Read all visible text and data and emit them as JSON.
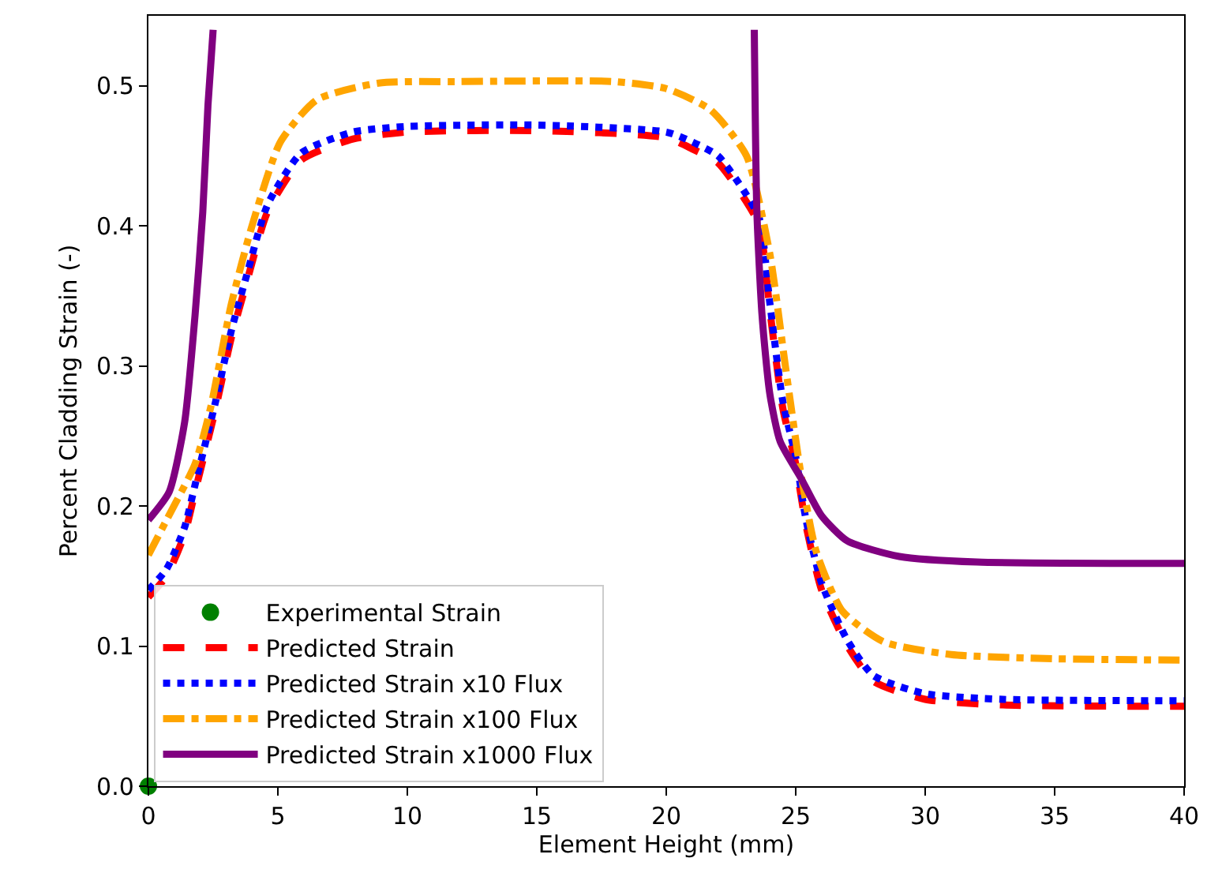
{
  "chart_data": {
    "type": "line",
    "xlabel": "Element Height (mm)",
    "ylabel": "Percent Cladding Strain (-)",
    "xlim": [
      0,
      40
    ],
    "xticks": [
      0,
      5,
      10,
      15,
      20,
      25,
      30,
      35,
      40
    ],
    "ylim": [
      0,
      0.55
    ],
    "yticks": [
      {
        "value": 0,
        "label": "0.0"
      },
      {
        "value": 0.1,
        "label": "0.1"
      },
      {
        "value": 0.2,
        "label": "0.2"
      },
      {
        "value": 0.3,
        "label": "0.3"
      },
      {
        "value": 0.4,
        "label": "0.4"
      },
      {
        "value": 0.5,
        "label": "0.5"
      }
    ],
    "grid": false,
    "legend": "bottom left",
    "series": [
      {
        "name": "Experimental Strain",
        "type": "scatter",
        "marker": "circle",
        "color": "#008000",
        "x": [
          0
        ],
        "values": [
          0
        ]
      },
      {
        "name": "Predicted Strain",
        "line_style": "dashed",
        "marker": "none",
        "color": "#ff0000",
        "x": [
          0,
          0.7,
          1.4,
          1.8,
          2.6,
          3.2,
          3.8,
          4.6,
          5.9,
          7.9,
          10,
          15,
          20,
          21,
          22,
          23,
          23.6,
          24,
          24.5,
          25,
          25.4,
          26,
          27,
          28,
          30,
          33,
          40
        ],
        "values": [
          0.135,
          0.15,
          0.18,
          0.21,
          0.27,
          0.32,
          0.36,
          0.41,
          0.447,
          0.462,
          0.467,
          0.468,
          0.463,
          0.455,
          0.445,
          0.42,
          0.4,
          0.34,
          0.27,
          0.23,
          0.186,
          0.14,
          0.1,
          0.075,
          0.062,
          0.058,
          0.057
        ]
      },
      {
        "name": "Predicted Strain x10 Flux",
        "line_style": "dotted",
        "marker": "none",
        "color": "#0000ff",
        "x": [
          0,
          0.7,
          1.4,
          1.8,
          2.6,
          3.2,
          3.8,
          4.6,
          5.9,
          7.9,
          10,
          15,
          20,
          21,
          22,
          23,
          23.6,
          24,
          24.5,
          25,
          25.4,
          26,
          27,
          28,
          30,
          33,
          40
        ],
        "values": [
          0.14,
          0.155,
          0.185,
          0.215,
          0.275,
          0.325,
          0.365,
          0.415,
          0.452,
          0.467,
          0.471,
          0.472,
          0.467,
          0.46,
          0.45,
          0.425,
          0.405,
          0.345,
          0.275,
          0.235,
          0.19,
          0.145,
          0.104,
          0.079,
          0.066,
          0.062,
          0.061
        ]
      },
      {
        "name": "Predicted Strain x100 Flux",
        "line_style": "dashdot",
        "marker": "none",
        "color": "#ffa500",
        "x": [
          0,
          0.7,
          1.8,
          2.4,
          3.2,
          4,
          5.1,
          6.5,
          8.9,
          12,
          18,
          20,
          21.7,
          23.1,
          24,
          24.6,
          25.2,
          25.8,
          26.8,
          28.4,
          31,
          35,
          40
        ],
        "values": [
          0.165,
          0.19,
          0.23,
          0.27,
          0.344,
          0.4,
          0.46,
          0.49,
          0.502,
          0.503,
          0.503,
          0.498,
          0.483,
          0.45,
          0.38,
          0.3,
          0.223,
          0.167,
          0.125,
          0.103,
          0.094,
          0.091,
          0.09
        ]
      },
      {
        "name": "Predicted Strain x1000 Flux",
        "line_style": "solid",
        "marker": "none",
        "color": "#800080",
        "x": [
          0,
          0.8,
          1.4,
          1.8,
          2.1,
          2.3,
          2.5,
          13,
          23.4,
          23.5,
          23.7,
          24,
          24.4,
          25.2,
          26,
          27,
          29,
          32,
          40
        ],
        "values": [
          0.19,
          0.21,
          0.26,
          0.336,
          0.41,
          0.486,
          0.54,
          null,
          0.54,
          0.41,
          0.336,
          0.28,
          0.246,
          0.22,
          0.193,
          0.175,
          0.164,
          0.16,
          0.159
        ]
      }
    ]
  }
}
